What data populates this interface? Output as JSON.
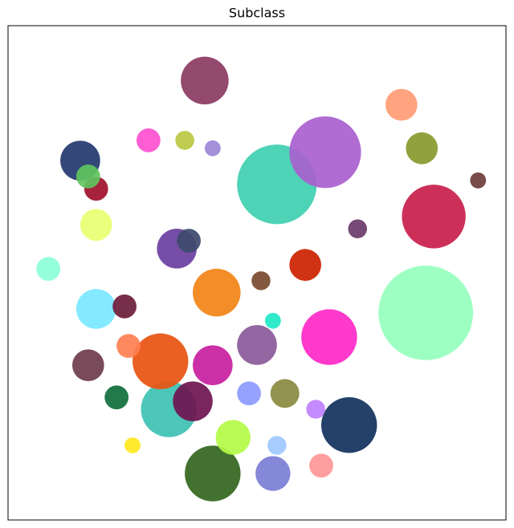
{
  "chart_data": {
    "type": "scatter",
    "title": "Subclass",
    "xlim": [
      0,
      100
    ],
    "ylim": [
      0,
      100
    ],
    "series": [
      {
        "color": "#8b3a62",
        "x": [
          39.5
        ],
        "values": [
          88.9
        ],
        "sizes": [
          4.8
        ]
      },
      {
        "color": "#3fcfb0",
        "x": [
          54.0
        ],
        "values": [
          67.9
        ],
        "sizes": [
          8.0
        ]
      },
      {
        "color": "#a95fcf",
        "x": [
          63.7
        ],
        "values": [
          74.4
        ],
        "sizes": [
          7.2
        ]
      },
      {
        "color": "#96ffbe",
        "x": [
          83.9
        ],
        "values": [
          41.9
        ],
        "sizes": [
          9.5
        ]
      },
      {
        "color": "#c81e4b",
        "x": [
          85.5
        ],
        "values": [
          61.4
        ],
        "sizes": [
          6.4
        ]
      },
      {
        "color": "#ff9c74",
        "x": [
          79.0
        ],
        "values": [
          84.0
        ],
        "sizes": [
          3.2
        ]
      },
      {
        "color": "#88992e",
        "x": [
          83.1
        ],
        "values": [
          75.2
        ],
        "sizes": [
          3.2
        ]
      },
      {
        "color": "#ff28c8",
        "x": [
          64.5
        ],
        "values": [
          37.0
        ],
        "sizes": [
          5.6
        ]
      },
      {
        "color": "#10315c",
        "x": [
          68.5
        ],
        "values": [
          19.2
        ],
        "sizes": [
          5.6
        ]
      },
      {
        "color": "#33661e",
        "x": [
          41.1
        ],
        "values": [
          9.4
        ],
        "sizes": [
          5.6
        ]
      },
      {
        "color": "#3dc1b2",
        "x": [
          32.3
        ],
        "values": [
          22.4
        ],
        "sizes": [
          5.6
        ]
      },
      {
        "color": "#e8520f",
        "x": [
          30.6
        ],
        "values": [
          32.1
        ],
        "sizes": [
          5.6
        ]
      },
      {
        "color": "#f28316",
        "x": [
          41.9
        ],
        "values": [
          46.0
        ],
        "sizes": [
          4.8
        ]
      },
      {
        "color": "#7ae8ff",
        "x": [
          17.7
        ],
        "values": [
          42.7
        ],
        "sizes": [
          4.0
        ]
      },
      {
        "color": "#c81ea0",
        "x": [
          41.1
        ],
        "values": [
          31.3
        ],
        "sizes": [
          4.0
        ]
      },
      {
        "color": "#6f1450",
        "x": [
          37.1
        ],
        "values": [
          24.0
        ],
        "sizes": [
          4.0
        ]
      },
      {
        "color": "#b4fa46",
        "x": [
          45.2
        ],
        "values": [
          16.7
        ],
        "sizes": [
          3.5
        ]
      },
      {
        "color": "#cc2200",
        "x": [
          59.7
        ],
        "values": [
          51.6
        ],
        "sizes": [
          3.2
        ]
      },
      {
        "color": "#7b7dd5",
        "x": [
          53.2
        ],
        "values": [
          9.4
        ],
        "sizes": [
          3.5
        ]
      },
      {
        "color": "#ff9696",
        "x": [
          62.9
        ],
        "values": [
          11.0
        ],
        "sizes": [
          2.4
        ]
      },
      {
        "color": "#8a5a9a",
        "x": [
          50.0
        ],
        "values": [
          35.4
        ],
        "sizes": [
          4.0
        ]
      },
      {
        "color": "#8a8a40",
        "x": [
          55.6
        ],
        "values": [
          25.6
        ],
        "sizes": [
          2.9
        ]
      },
      {
        "color": "#6e3b4c",
        "x": [
          16.1
        ],
        "values": [
          31.3
        ],
        "sizes": [
          3.2
        ]
      },
      {
        "color": "#ff7f50",
        "x": [
          24.2
        ],
        "values": [
          35.2
        ],
        "sizes": [
          2.4
        ]
      },
      {
        "color": "#8c9aff",
        "x": [
          48.4
        ],
        "values": [
          25.6
        ],
        "sizes": [
          2.4
        ]
      },
      {
        "color": "#ff4fcf",
        "x": [
          28.2
        ],
        "values": [
          76.8
        ],
        "sizes": [
          2.4
        ]
      },
      {
        "color": "#22386e",
        "x": [
          14.5
        ],
        "values": [
          72.7
        ],
        "sizes": [
          4.0
        ]
      },
      {
        "color": "#e8ff70",
        "x": [
          17.7
        ],
        "values": [
          59.7
        ],
        "sizes": [
          3.2
        ]
      },
      {
        "color": "#a0102a",
        "x": [
          17.7
        ],
        "values": [
          67.0
        ],
        "sizes": [
          2.4
        ]
      },
      {
        "color": "#5fc45f",
        "x": [
          16.1
        ],
        "values": [
          69.5
        ],
        "sizes": [
          2.4
        ]
      },
      {
        "color": "#6b3fa0",
        "x": [
          33.9
        ],
        "values": [
          54.9
        ],
        "sizes": [
          4.0
        ]
      },
      {
        "color": "#3e4a6e",
        "x": [
          36.3
        ],
        "values": [
          56.5
        ],
        "sizes": [
          2.4
        ]
      },
      {
        "color": "#8cffd8",
        "x": [
          8.1
        ],
        "values": [
          50.8
        ],
        "sizes": [
          2.4
        ]
      },
      {
        "color": "#6b1c3a",
        "x": [
          23.4
        ],
        "values": [
          43.2
        ],
        "sizes": [
          2.4
        ]
      },
      {
        "color": "#6a3a6a",
        "x": [
          70.2
        ],
        "values": [
          58.9
        ],
        "sizes": [
          1.9
        ]
      },
      {
        "color": "#6e3c3c",
        "x": [
          94.4
        ],
        "values": [
          68.7
        ],
        "sizes": [
          1.6
        ]
      },
      {
        "color": "#9c88d8",
        "x": [
          41.1
        ],
        "values": [
          75.2
        ],
        "sizes": [
          1.6
        ]
      },
      {
        "color": "#ffe81e",
        "x": [
          25.0
        ],
        "values": [
          15.1
        ],
        "sizes": [
          1.6
        ]
      },
      {
        "color": "#0f6e3c",
        "x": [
          21.8
        ],
        "values": [
          24.8
        ],
        "sizes": [
          2.4
        ]
      },
      {
        "color": "#1fe8c8",
        "x": [
          53.2
        ],
        "values": [
          40.3
        ],
        "sizes": [
          1.6
        ]
      },
      {
        "color": "#7a4a2e",
        "x": [
          50.8
        ],
        "values": [
          48.4
        ],
        "sizes": [
          1.9
        ]
      },
      {
        "color": "#c080ff",
        "x": [
          61.8
        ],
        "values": [
          22.4
        ],
        "sizes": [
          1.9
        ]
      },
      {
        "color": "#9fc8ff",
        "x": [
          54.0
        ],
        "values": [
          15.1
        ],
        "sizes": [
          1.9
        ]
      },
      {
        "color": "#b8c840",
        "x": [
          35.5
        ],
        "values": [
          76.8
        ],
        "sizes": [
          1.9
        ]
      }
    ]
  }
}
